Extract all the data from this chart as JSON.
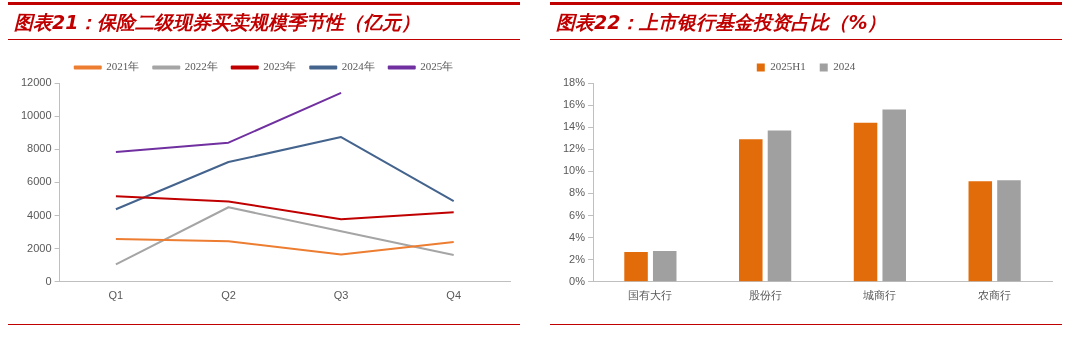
{
  "chart_data": [
    {
      "type": "line",
      "title": "图表21：保险二级现券买卖规模季节性（亿元）",
      "categories": [
        "Q1",
        "Q2",
        "Q3",
        "Q4"
      ],
      "series": [
        {
          "name": "2021年",
          "color": "#ed7d31",
          "values": [
            2580,
            2450,
            1650,
            2400
          ]
        },
        {
          "name": "2022年",
          "color": "#a5a5a5",
          "values": [
            1050,
            4500,
            3050,
            1620
          ]
        },
        {
          "name": "2023年",
          "color": "#c00000",
          "values": [
            5170,
            4850,
            3780,
            4200
          ]
        },
        {
          "name": "2024年",
          "color": "#44648e",
          "values": [
            4380,
            7230,
            8740,
            4870
          ]
        },
        {
          "name": "2025年",
          "color": "#7030a0",
          "values": [
            7830,
            8400,
            11400,
            null
          ]
        }
      ],
      "ylim": [
        0,
        12000
      ],
      "yticks": [
        0,
        2000,
        4000,
        6000,
        8000,
        10000,
        12000
      ],
      "grid": false,
      "legend": "top",
      "marker": "none"
    },
    {
      "type": "bar",
      "title": "图表22：上市银行基金投资占比（%）",
      "categories": [
        "国有大行",
        "股份行",
        "城商行",
        "农商行"
      ],
      "series": [
        {
          "name": "2025H1",
          "color": "#e36c0a",
          "values": [
            2.7,
            12.9,
            14.4,
            9.1
          ]
        },
        {
          "name": "2024",
          "color": "#a0a0a0",
          "values": [
            2.8,
            13.7,
            15.6,
            9.2
          ]
        }
      ],
      "ylim": [
        0,
        18
      ],
      "yticks": [
        {
          "value": 0,
          "label": "0%"
        },
        {
          "value": 2,
          "label": "2%"
        },
        {
          "value": 4,
          "label": "4%"
        },
        {
          "value": 6,
          "label": "6%"
        },
        {
          "value": 8,
          "label": "8%"
        },
        {
          "value": 10,
          "label": "10%"
        },
        {
          "value": 12,
          "label": "12%"
        },
        {
          "value": 14,
          "label": "14%"
        },
        {
          "value": 16,
          "label": "16%"
        },
        {
          "value": 18,
          "label": "18%"
        }
      ],
      "grid": false,
      "legend": "top"
    }
  ]
}
